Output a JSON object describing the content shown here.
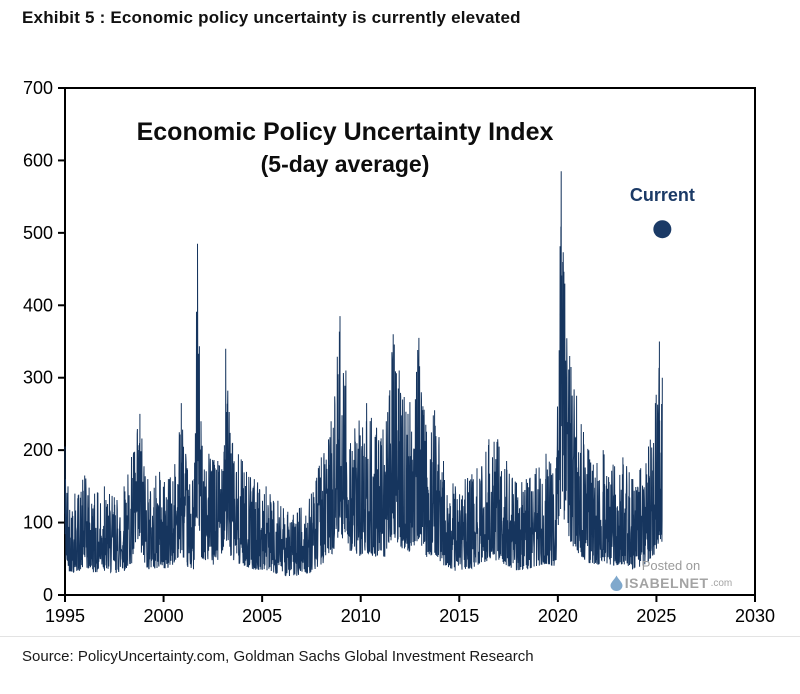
{
  "page": {
    "exhibit_title": "Exhibit 5 : Economic policy uncertainty is currently elevated",
    "source": "Source: PolicyUncertainty.com, Goldman Sachs Global Investment Research"
  },
  "watermark": {
    "posted_on": "Posted on",
    "brand": "ISABELNET",
    "suffix": ".com",
    "drop_color": "#7fa8cc",
    "text_color": "#a3a3a3"
  },
  "chart_data": {
    "type": "line",
    "title": "Economic Policy Uncertainty Index",
    "subtitle": "(5-day average)",
    "xlabel": "",
    "ylabel": "",
    "xlim": [
      1995,
      2030
    ],
    "ylim": [
      0,
      700
    ],
    "x_ticks": [
      1995,
      2000,
      2005,
      2010,
      2015,
      2020,
      2025,
      2030
    ],
    "y_ticks": [
      0,
      100,
      200,
      300,
      400,
      500,
      600,
      700
    ],
    "grid": false,
    "legend": "none",
    "series_color": "#16355e",
    "axis_color": "#000000",
    "annotation": {
      "label": "Current",
      "x": 2025.3,
      "y": 505,
      "color": "#1b3a66",
      "dot_radius": 9
    },
    "noise_seed": 42,
    "noise_floor": 22,
    "sample_step_years": 0.012,
    "envelope": [
      [
        1995.0,
        205
      ],
      [
        1995.15,
        150
      ],
      [
        1995.5,
        140
      ],
      [
        1996.0,
        165
      ],
      [
        1996.5,
        140
      ],
      [
        1997.0,
        150
      ],
      [
        1997.5,
        135
      ],
      [
        1998.0,
        150
      ],
      [
        1998.8,
        250
      ],
      [
        1999.2,
        160
      ],
      [
        1999.8,
        170
      ],
      [
        2000.3,
        160
      ],
      [
        2000.9,
        265
      ],
      [
        2001.2,
        175
      ],
      [
        2001.55,
        160
      ],
      [
        2001.72,
        485
      ],
      [
        2001.9,
        240
      ],
      [
        2002.3,
        195
      ],
      [
        2002.75,
        185
      ],
      [
        2003.15,
        340
      ],
      [
        2003.5,
        210
      ],
      [
        2004.0,
        185
      ],
      [
        2004.6,
        160
      ],
      [
        2005.2,
        150
      ],
      [
        2005.8,
        130
      ],
      [
        2006.3,
        115
      ],
      [
        2006.9,
        120
      ],
      [
        2007.5,
        140
      ],
      [
        2008.0,
        190
      ],
      [
        2008.5,
        240
      ],
      [
        2008.95,
        385
      ],
      [
        2009.25,
        310
      ],
      [
        2009.7,
        230
      ],
      [
        2010.3,
        265
      ],
      [
        2010.8,
        230
      ],
      [
        2011.3,
        240
      ],
      [
        2011.65,
        360
      ],
      [
        2011.95,
        310
      ],
      [
        2012.4,
        250
      ],
      [
        2012.95,
        355
      ],
      [
        2013.3,
        235
      ],
      [
        2013.75,
        255
      ],
      [
        2014.2,
        185
      ],
      [
        2014.8,
        150
      ],
      [
        2015.3,
        160
      ],
      [
        2015.9,
        175
      ],
      [
        2016.5,
        215
      ],
      [
        2016.95,
        215
      ],
      [
        2017.4,
        185
      ],
      [
        2017.9,
        155
      ],
      [
        2018.4,
        160
      ],
      [
        2018.9,
        175
      ],
      [
        2019.4,
        195
      ],
      [
        2019.9,
        175
      ],
      [
        2020.17,
        585
      ],
      [
        2020.35,
        430
      ],
      [
        2020.6,
        330
      ],
      [
        2020.95,
        275
      ],
      [
        2021.3,
        225
      ],
      [
        2021.8,
        180
      ],
      [
        2022.3,
        200
      ],
      [
        2022.8,
        180
      ],
      [
        2023.3,
        190
      ],
      [
        2023.8,
        160
      ],
      [
        2024.2,
        175
      ],
      [
        2024.6,
        205
      ],
      [
        2024.95,
        265
      ],
      [
        2025.15,
        350
      ],
      [
        2025.3,
        300
      ]
    ]
  }
}
